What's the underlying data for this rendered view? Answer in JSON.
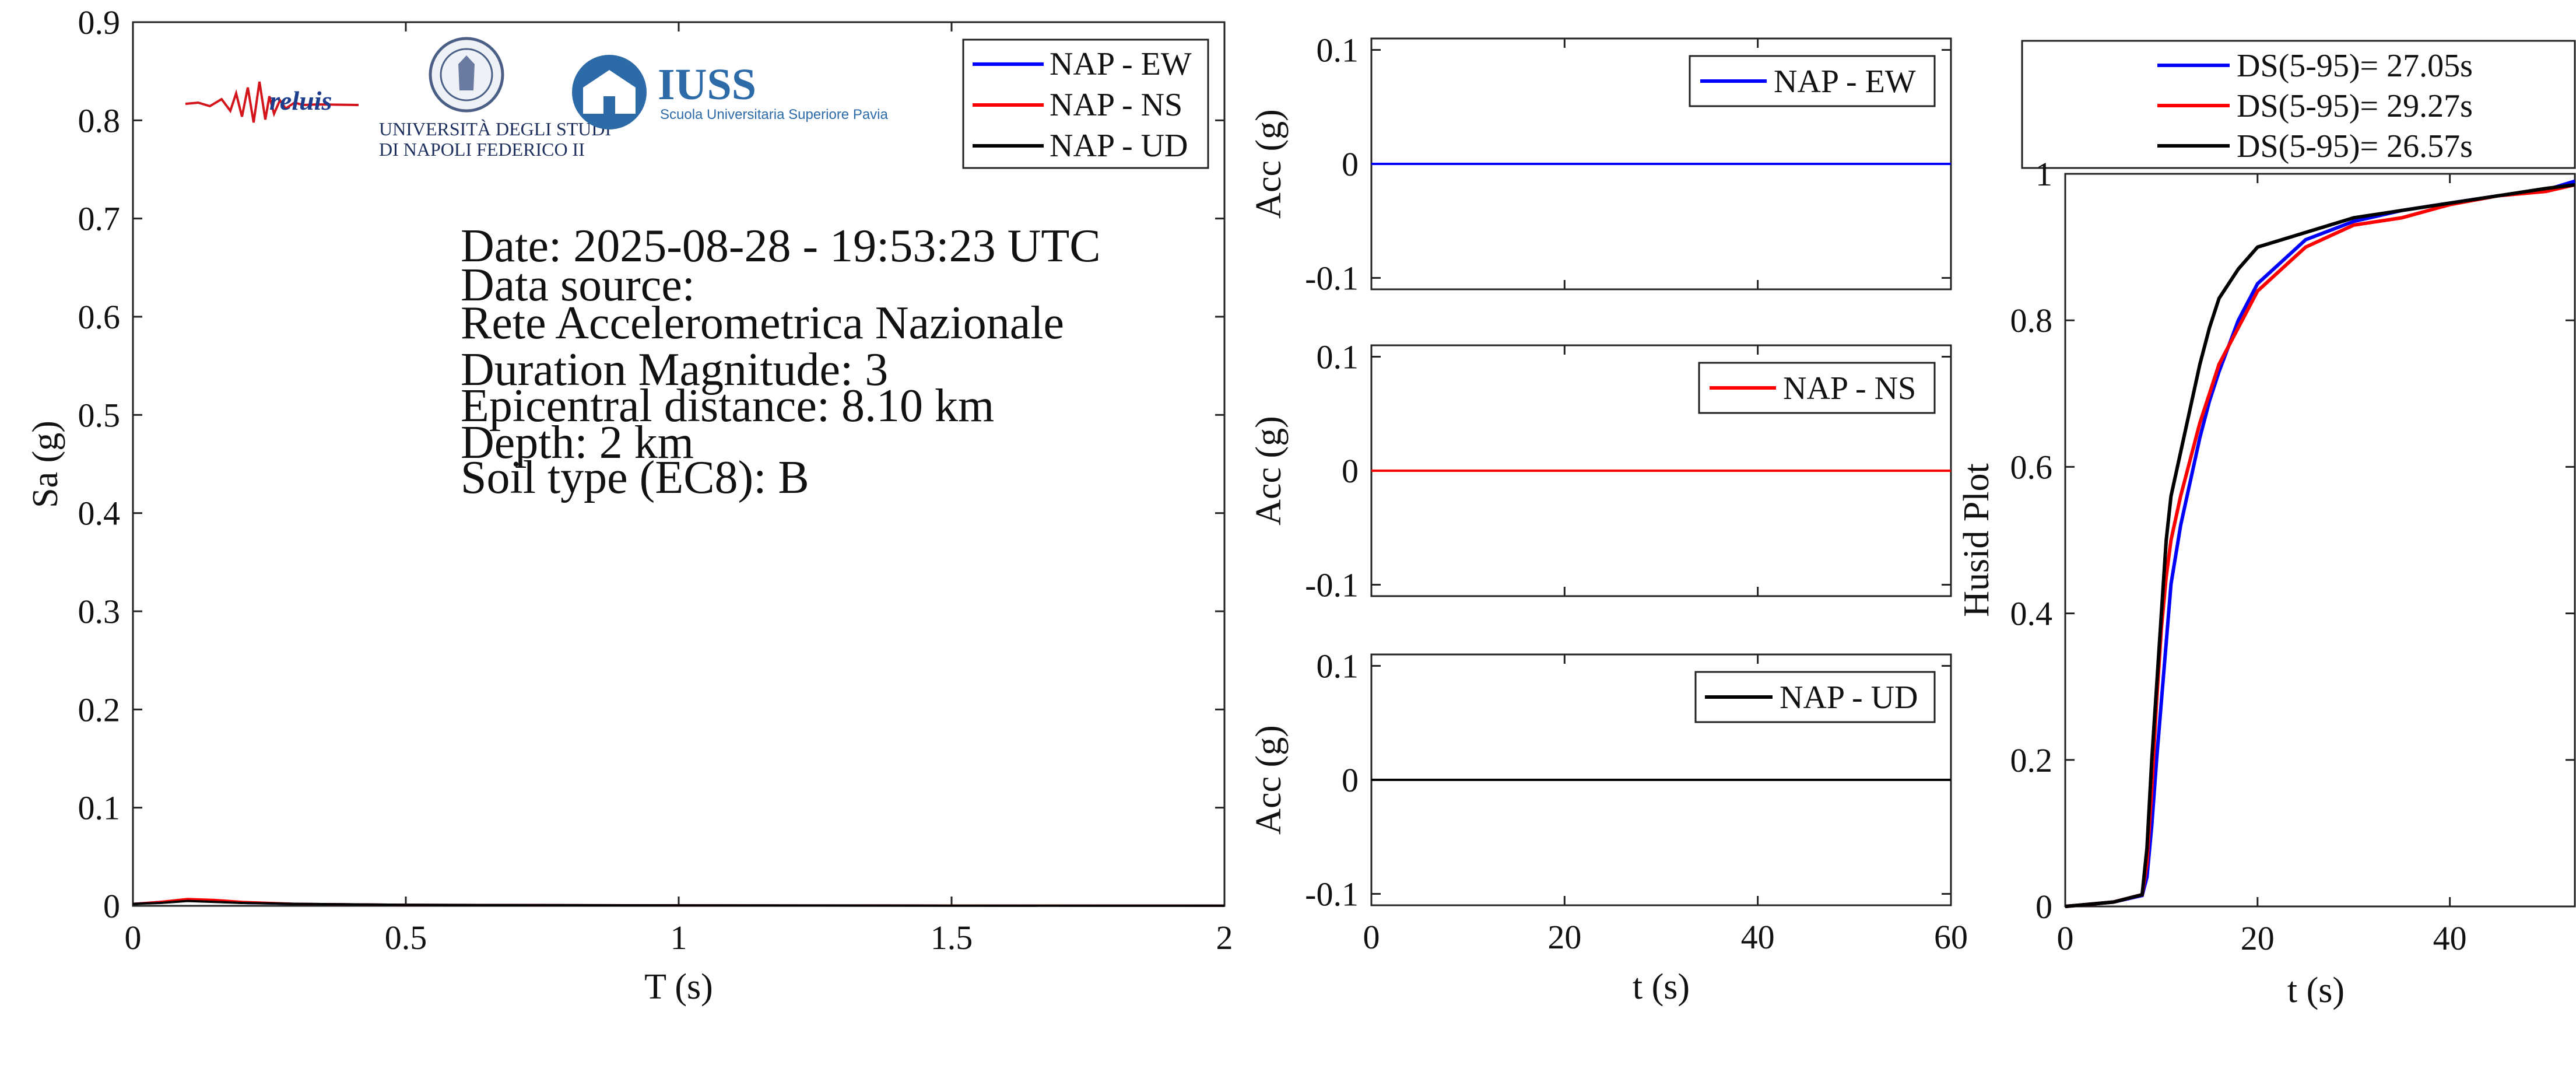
{
  "info": {
    "date": "Date: 2025-08-28 - 19:53:23 UTC",
    "source_label": "Data source:",
    "source": "Rete Accelerometrica Nazionale",
    "magnitude": "Duration Magnitude: 3",
    "distance": "Epicentral distance: 8.10 km",
    "depth": "Depth: 2 km",
    "soil": "Soil type (EC8): B"
  },
  "logos": {
    "reluis": "reluis",
    "unina_line1": "UNIVERSITÀ DEGLI STUDI",
    "unina_line2": "DI NAPOLI FEDERICO II",
    "iuss": "IUSS",
    "iuss_sub": "Scuola Universitaria Superiore Pavia"
  },
  "colors": {
    "ew": "#0000ff",
    "ns": "#ff0000",
    "ud": "#000000"
  },
  "chart_data": [
    {
      "type": "line",
      "id": "spectrum",
      "xlabel": "T (s)",
      "ylabel": "Sa (g)",
      "xlim": [
        0,
        2
      ],
      "ylim": [
        0,
        0.9
      ],
      "xticks": [
        "0",
        "0.5",
        "1",
        "1.5",
        "2"
      ],
      "yticks": [
        "0",
        "0.1",
        "0.2",
        "0.3",
        "0.4",
        "0.5",
        "0.6",
        "0.7",
        "0.8",
        "0.9"
      ],
      "legend_position": "top-right",
      "series": [
        {
          "name": "NAP - EW",
          "color": "#0000ff",
          "x": [
            0,
            0.05,
            0.1,
            0.15,
            0.2,
            0.3,
            0.5,
            1,
            1.5,
            2
          ],
          "y": [
            0.002,
            0.004,
            0.006,
            0.005,
            0.003,
            0.002,
            0.001,
            0.0005,
            0.0003,
            0.0002
          ]
        },
        {
          "name": "NAP - NS",
          "color": "#ff0000",
          "x": [
            0,
            0.05,
            0.1,
            0.15,
            0.2,
            0.3,
            0.5,
            1,
            1.5,
            2
          ],
          "y": [
            0.002,
            0.004,
            0.007,
            0.006,
            0.004,
            0.002,
            0.001,
            0.0005,
            0.0003,
            0.0002
          ]
        },
        {
          "name": "NAP - UD",
          "color": "#000000",
          "x": [
            0,
            0.05,
            0.1,
            0.15,
            0.2,
            0.3,
            0.5,
            1,
            1.5,
            2
          ],
          "y": [
            0.002,
            0.003,
            0.005,
            0.004,
            0.003,
            0.002,
            0.001,
            0.0004,
            0.0002,
            0.0002
          ]
        }
      ]
    },
    {
      "type": "line",
      "id": "acc-ew",
      "xlabel": "",
      "ylabel": "Acc (g)",
      "xlim": [
        0,
        60
      ],
      "ylim": [
        -0.11,
        0.11
      ],
      "yticks": [
        "-0.1",
        "0",
        "0.1"
      ],
      "legend_position": "top-right",
      "series": [
        {
          "name": "NAP - EW",
          "color": "#0000ff",
          "x": [
            0,
            60
          ],
          "y": [
            0,
            0
          ]
        }
      ]
    },
    {
      "type": "line",
      "id": "acc-ns",
      "xlabel": "",
      "ylabel": "Acc (g)",
      "xlim": [
        0,
        60
      ],
      "ylim": [
        -0.11,
        0.11
      ],
      "yticks": [
        "-0.1",
        "0",
        "0.1"
      ],
      "legend_position": "top-right",
      "series": [
        {
          "name": "NAP - NS",
          "color": "#ff0000",
          "x": [
            0,
            60
          ],
          "y": [
            0,
            0
          ]
        }
      ]
    },
    {
      "type": "line",
      "id": "acc-ud",
      "xlabel": "t (s)",
      "ylabel": "Acc (g)",
      "xlim": [
        0,
        60
      ],
      "ylim": [
        -0.11,
        0.11
      ],
      "xticks": [
        "0",
        "20",
        "40",
        "60"
      ],
      "yticks": [
        "-0.1",
        "0",
        "0.1"
      ],
      "legend_position": "top-right",
      "series": [
        {
          "name": "NAP - UD",
          "color": "#000000",
          "x": [
            0,
            60
          ],
          "y": [
            0,
            0
          ]
        }
      ]
    },
    {
      "type": "line",
      "id": "husid",
      "xlabel": "t (s)",
      "ylabel": "Husid Plot",
      "xlim": [
        0,
        53
      ],
      "ylim": [
        0,
        1
      ],
      "xticks": [
        "0",
        "20",
        "40"
      ],
      "yticks": [
        "0",
        "0.2",
        "0.4",
        "0.6",
        "0.8",
        "1"
      ],
      "legend_position": "top (outside)",
      "series": [
        {
          "name": "DS(5-95)= 27.05s",
          "color": "#0000ff",
          "x": [
            0,
            5,
            8,
            8.5,
            9,
            9.5,
            10,
            10.5,
            11,
            12,
            13,
            14,
            15,
            16,
            18,
            20,
            25,
            30,
            35,
            40,
            45,
            50,
            53
          ],
          "y": [
            0,
            0.006,
            0.015,
            0.04,
            0.11,
            0.2,
            0.28,
            0.36,
            0.44,
            0.52,
            0.58,
            0.64,
            0.69,
            0.73,
            0.8,
            0.85,
            0.91,
            0.935,
            0.95,
            0.96,
            0.97,
            0.978,
            0.99
          ]
        },
        {
          "name": "DS(5-95)= 29.27s",
          "color": "#ff0000",
          "x": [
            0,
            5,
            8,
            8.5,
            9,
            9.5,
            10,
            10.5,
            11,
            12,
            13,
            14,
            15,
            16,
            18,
            20,
            25,
            30,
            35,
            40,
            45,
            50,
            53
          ],
          "y": [
            0,
            0.006,
            0.016,
            0.06,
            0.16,
            0.28,
            0.38,
            0.45,
            0.5,
            0.56,
            0.61,
            0.66,
            0.7,
            0.74,
            0.79,
            0.84,
            0.9,
            0.93,
            0.94,
            0.958,
            0.97,
            0.976,
            0.985
          ]
        },
        {
          "name": "DS(5-95)= 26.57s",
          "color": "#000000",
          "x": [
            0,
            5,
            8,
            8.5,
            9,
            9.5,
            10,
            10.5,
            11,
            12,
            13,
            14,
            15,
            16,
            18,
            20,
            25,
            30,
            35,
            40,
            45,
            50,
            53
          ],
          "y": [
            0,
            0.006,
            0.016,
            0.08,
            0.2,
            0.3,
            0.4,
            0.5,
            0.56,
            0.62,
            0.68,
            0.74,
            0.79,
            0.83,
            0.87,
            0.9,
            0.92,
            0.94,
            0.95,
            0.96,
            0.97,
            0.98,
            0.985
          ]
        }
      ]
    }
  ]
}
